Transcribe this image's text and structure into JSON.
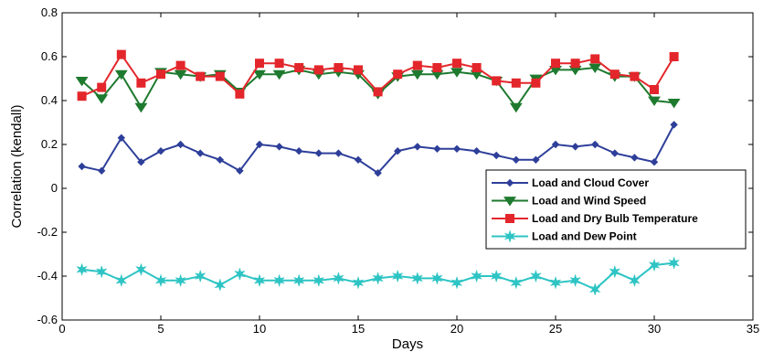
{
  "chart_data": {
    "type": "line",
    "xlabel": "Days",
    "ylabel": "Correlation (kendall)",
    "xlim": [
      0,
      35
    ],
    "ylim": [
      -0.6,
      0.8
    ],
    "xticks": [
      0,
      5,
      10,
      15,
      20,
      25,
      30,
      35
    ],
    "yticks": [
      -0.6,
      -0.4,
      -0.2,
      0,
      0.2,
      0.4,
      0.6,
      0.8
    ],
    "ytick_labels": [
      "-0.6",
      "-0.4",
      "-0.2",
      "0",
      "0.2",
      "0.4",
      "0.6",
      "0.8"
    ],
    "grid": false,
    "legend_position": "right",
    "x": [
      1,
      2,
      3,
      4,
      5,
      6,
      7,
      8,
      9,
      10,
      11,
      12,
      13,
      14,
      15,
      16,
      17,
      18,
      19,
      20,
      21,
      22,
      23,
      24,
      25,
      26,
      27,
      28,
      29,
      30,
      31
    ],
    "series": [
      {
        "name": "Load and Cloud Cover",
        "color": "#2E3F9A",
        "marker": "diamond",
        "values": [
          0.1,
          0.08,
          0.23,
          0.12,
          0.17,
          0.2,
          0.16,
          0.13,
          0.08,
          0.2,
          0.19,
          0.17,
          0.16,
          0.16,
          0.13,
          0.07,
          0.17,
          0.19,
          0.18,
          0.18,
          0.17,
          0.15,
          0.13,
          0.13,
          0.2,
          0.19,
          0.2,
          0.16,
          0.14,
          0.12,
          0.29
        ]
      },
      {
        "name": "Load and Wind Speed",
        "color": "#1E7A2E",
        "marker": "triangle-down",
        "values": [
          0.49,
          0.41,
          0.52,
          0.37,
          0.53,
          0.52,
          0.51,
          0.52,
          0.44,
          0.52,
          0.52,
          0.54,
          0.52,
          0.53,
          0.52,
          0.43,
          0.51,
          0.52,
          0.52,
          0.53,
          0.52,
          0.49,
          0.37,
          0.5,
          0.54,
          0.54,
          0.55,
          0.51,
          0.51,
          0.4,
          0.39
        ]
      },
      {
        "name": "Load and Dry Bulb Temperature",
        "color": "#E3262B",
        "marker": "square",
        "values": [
          0.42,
          0.46,
          0.61,
          0.48,
          0.52,
          0.56,
          0.51,
          0.51,
          0.43,
          0.57,
          0.57,
          0.55,
          0.54,
          0.55,
          0.54,
          0.44,
          0.52,
          0.56,
          0.55,
          0.57,
          0.55,
          0.49,
          0.48,
          0.48,
          0.57,
          0.57,
          0.59,
          0.52,
          0.51,
          0.45,
          0.6
        ]
      },
      {
        "name": "Load and Dew Point",
        "color": "#2EC4C4",
        "marker": "star",
        "values": [
          -0.37,
          -0.38,
          -0.42,
          -0.37,
          -0.42,
          -0.42,
          -0.4,
          -0.44,
          -0.39,
          -0.42,
          -0.42,
          -0.42,
          -0.42,
          -0.41,
          -0.43,
          -0.41,
          -0.4,
          -0.41,
          -0.41,
          -0.43,
          -0.4,
          -0.4,
          -0.43,
          -0.4,
          -0.43,
          -0.42,
          -0.46,
          -0.38,
          -0.42,
          -0.35,
          -0.34
        ]
      }
    ]
  }
}
